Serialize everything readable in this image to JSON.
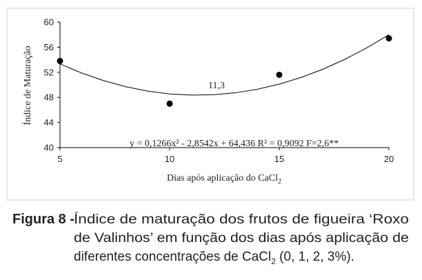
{
  "chart_data": {
    "type": "scatter",
    "y_label": "Índice de Maturação",
    "x_label": "Dias após aplicação do CaCl",
    "x_label_sub": "2",
    "annotation": "11,3",
    "equation": "y = 0,1266x² - 2,8542x + 64,436  R² = 0,9092  F=2,6**",
    "x": [
      5,
      10,
      15,
      20
    ],
    "values": [
      53.8,
      47.0,
      51.6,
      57.4
    ],
    "color": "#000000",
    "trendline": {
      "x": [
        5,
        6,
        7,
        8,
        9,
        10,
        11,
        12,
        13,
        14,
        15,
        16,
        17,
        18,
        19,
        20
      ],
      "values": [
        53.33,
        51.87,
        50.66,
        49.7,
        49.0,
        48.55,
        48.36,
        48.42,
        48.73,
        49.29,
        50.11,
        51.18,
        52.5,
        54.08,
        55.91,
        57.99
      ]
    },
    "xlim": [
      5,
      20
    ],
    "xticks": [
      5,
      10,
      15,
      20
    ],
    "ylim": [
      40,
      60
    ],
    "yticks": [
      40,
      44,
      48,
      52,
      56,
      60
    ]
  },
  "caption": {
    "label": "Figura 8 -",
    "lines": [
      "Índice de maturação dos frutos de figueira ‘Roxo",
      "de Valinhos’ em função dos dias após aplicação de",
      "diferentes concentrações de CaCl"
    ],
    "sub": "2",
    "tail": " (0, 1, 2, 3%)."
  }
}
